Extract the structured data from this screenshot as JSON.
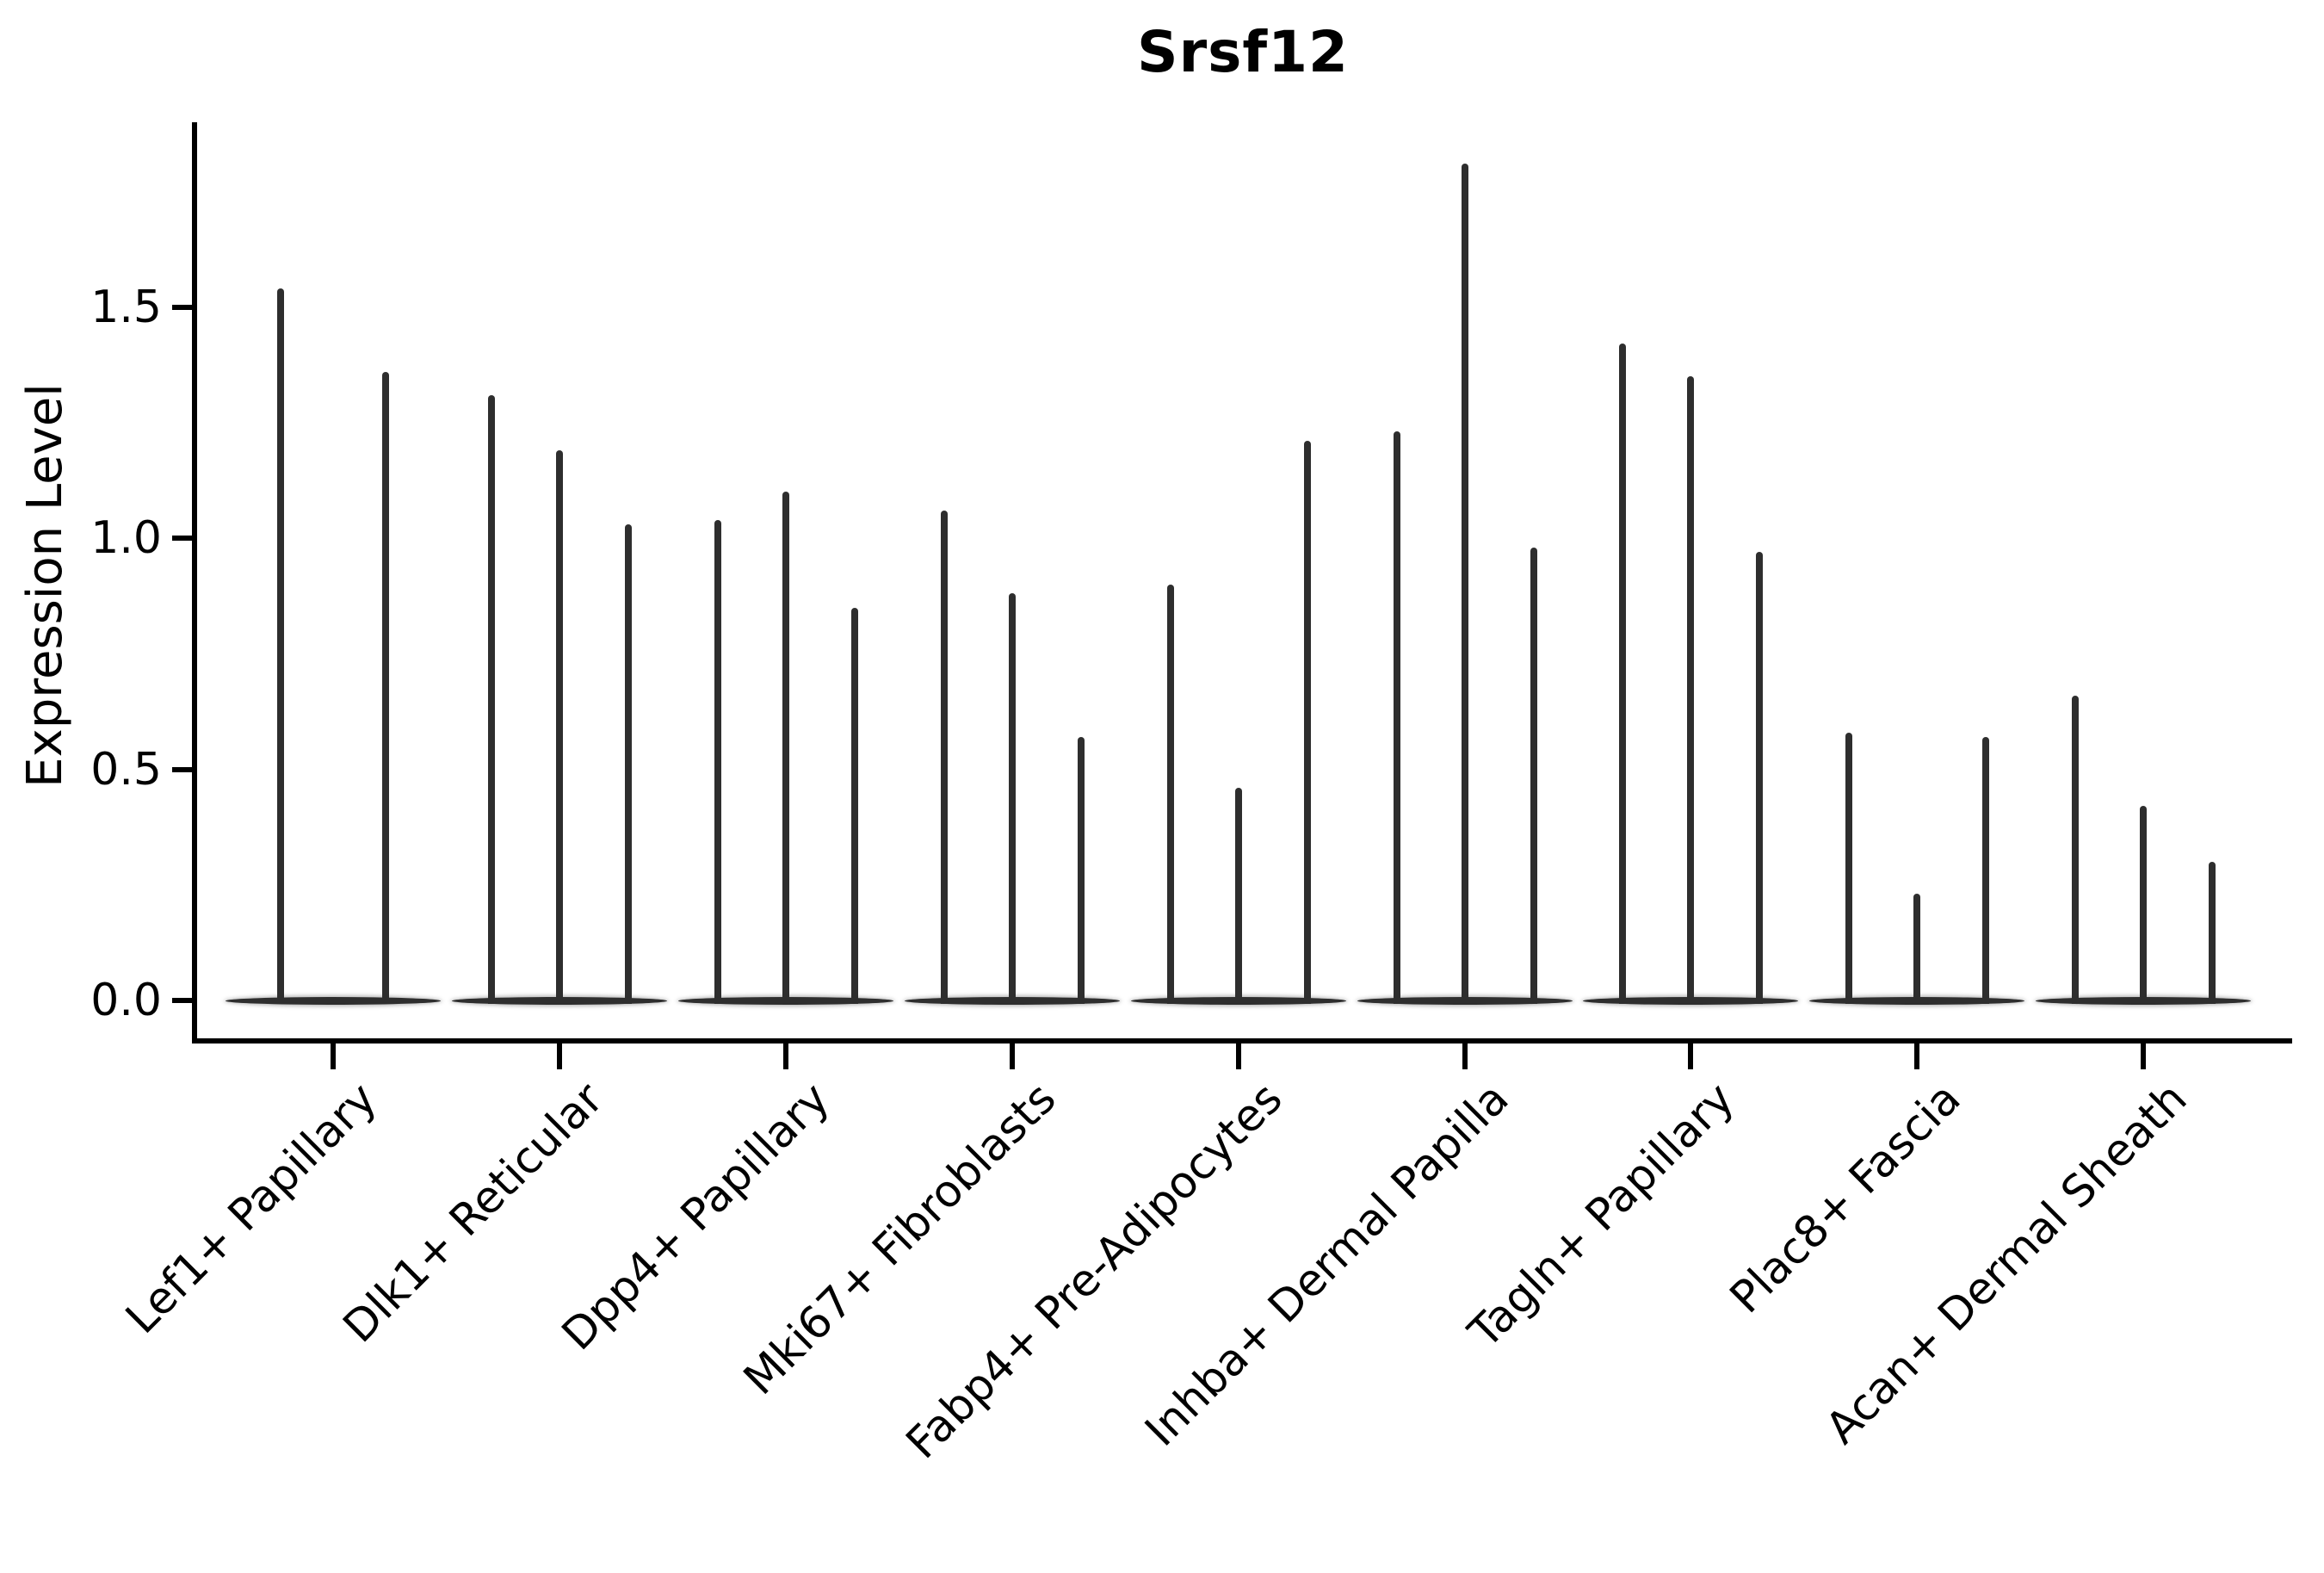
{
  "title": "Srsf12",
  "ylabel": "Expression Level",
  "chart_data": {
    "type": "violin",
    "title": "Srsf12",
    "xlabel": "",
    "ylabel": "Expression Level",
    "yticks": [
      0.0,
      0.5,
      1.0,
      1.5
    ],
    "ylim": [
      -0.08,
      1.9
    ],
    "grid": false,
    "legend": "none",
    "style_note": "very thin needle-like violins (near-zero width bodies) with flat collapsed base at 0, dark gray #2e2e2e on white, black axes",
    "categories": [
      "Lef1+ Papillary",
      "Dlk1+ Reticular",
      "Dpp4+ Papillary",
      "Mki67+ Fibroblasts",
      "Fabp4+ Pre-Adipocytes",
      "Inhba+ Dermal Papilla",
      "Tagln+ Papillary",
      "Plac8+ Fascia",
      "Acan+ Dermal Sheath"
    ],
    "violins": [
      {
        "category": "Lef1+ Papillary",
        "peak_expression_levels": [
          1.54,
          1.36
        ]
      },
      {
        "category": "Dlk1+ Reticular",
        "peak_expression_levels": [
          1.31,
          1.19,
          1.03
        ]
      },
      {
        "category": "Dpp4+ Papillary",
        "peak_expression_levels": [
          1.04,
          1.1,
          0.85
        ]
      },
      {
        "category": "Mki67+ Fibroblasts",
        "peak_expression_levels": [
          1.06,
          0.88,
          0.57
        ]
      },
      {
        "category": "Fabp4+ Pre-Adipocytes",
        "peak_expression_levels": [
          0.9,
          0.46,
          1.21
        ]
      },
      {
        "category": "Inhba+ Dermal Papilla",
        "peak_expression_levels": [
          1.23,
          1.81,
          0.98
        ]
      },
      {
        "category": "Tagln+ Papillary",
        "peak_expression_levels": [
          1.42,
          1.35,
          0.97
        ]
      },
      {
        "category": "Plac8+ Fascia",
        "peak_expression_levels": [
          0.58,
          0.23,
          0.57
        ]
      },
      {
        "category": "Acan+ Dermal Sheath",
        "peak_expression_levels": [
          0.66,
          0.42,
          0.3
        ]
      }
    ],
    "colors": {
      "violin": "#2e2e2e",
      "axis": "#000000",
      "text": "#000000",
      "background": "#ffffff"
    }
  }
}
